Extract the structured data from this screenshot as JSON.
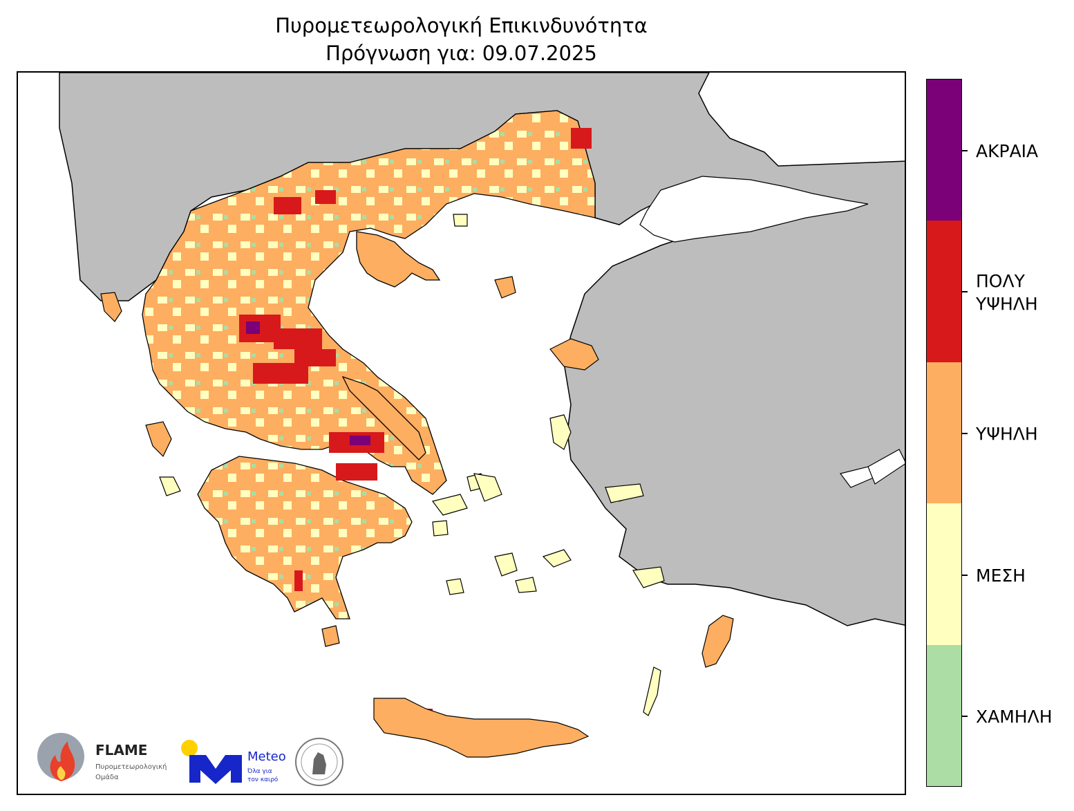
{
  "title": {
    "line1": "Πυρομετεωρολογική Επικινδυνότητα",
    "line2": "Πρόγνωση για: 09.07.2025"
  },
  "legend": {
    "categories": [
      {
        "label": "ΑΚΡΑΙΑ",
        "color": "#7a0177"
      },
      {
        "label": "ΠΟΛΥ\nΥΨΗΛΗ",
        "line1": "ΠΟΛΥ",
        "line2": "ΥΨΗΛΗ",
        "color": "#d7191c"
      },
      {
        "label": "ΥΨΗΛΗ",
        "color": "#fdae61"
      },
      {
        "label": "ΜΕΣΗ",
        "color": "#ffffc0"
      },
      {
        "label": "ΧΑΜΗΛΗ",
        "color": "#abdda4"
      }
    ]
  },
  "map": {
    "land_outside_color": "#bdbdbd",
    "sea_color": "#ffffff",
    "border_color": "#000000"
  },
  "logos": {
    "flame_title": "FLAME",
    "flame_sub1": "Πυρομετεωρολογική",
    "flame_sub2": "Ομάδα",
    "meteo_title": "Meteo",
    "meteo_sub1": "Όλα για",
    "meteo_sub2": "τον καιρό"
  }
}
